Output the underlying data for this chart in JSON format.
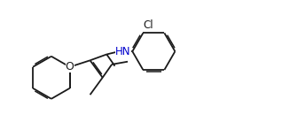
{
  "bg_color": "#ffffff",
  "line_color": "#1a1a1a",
  "text_color": "#1a1a1a",
  "hn_color": "#0000cd",
  "o_label": "O",
  "cl_label": "Cl",
  "hn_label": "HN",
  "line_width": 1.3,
  "font_size": 8.5
}
